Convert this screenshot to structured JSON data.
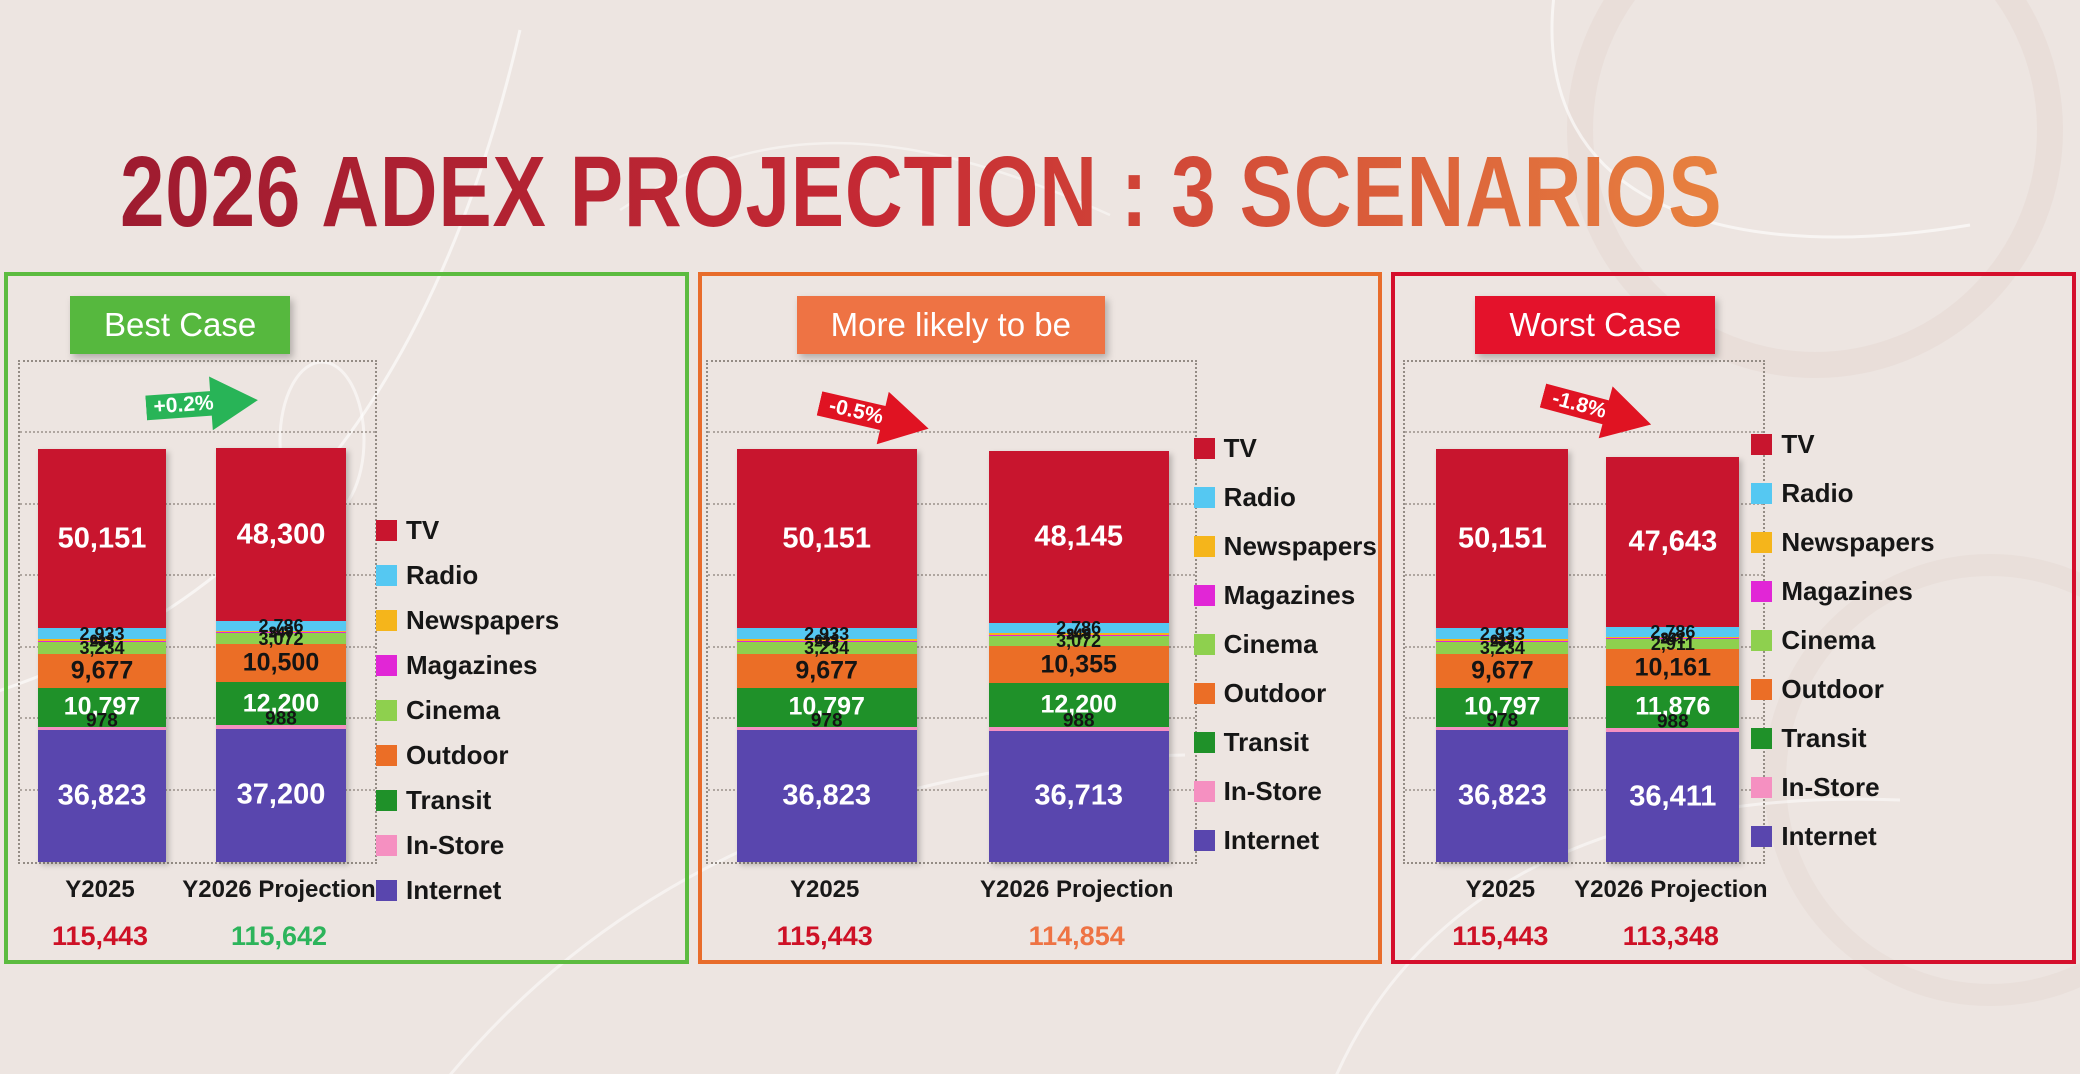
{
  "page": {
    "title": "2026 ADEX PROJECTION : 3 SCENARIOS",
    "background_color": "#EDE5E1",
    "title_gradient_colors": [
      "#9E1B30",
      "#E8823F"
    ]
  },
  "legend_items": [
    {
      "label": "TV",
      "color": "#C8152E"
    },
    {
      "label": "Radio",
      "color": "#55C8F2"
    },
    {
      "label": "Newspapers",
      "color": "#F5B51B"
    },
    {
      "label": "Magazines",
      "color": "#E126D6"
    },
    {
      "label": "Cinema",
      "color": "#8ED04E"
    },
    {
      "label": "Outdoor",
      "color": "#EB6E26"
    },
    {
      "label": "Transit",
      "color": "#1F9129"
    },
    {
      "label": "In-Store",
      "color": "#F590C1"
    },
    {
      "label": "Internet",
      "color": "#5946AE"
    }
  ],
  "stack_order_bottom_to_top": [
    "Internet",
    "In-Store",
    "Transit",
    "Outdoor",
    "Cinema",
    "Magazines",
    "Newspapers",
    "Radio",
    "TV"
  ],
  "chart_data": [
    {
      "type": "bar",
      "title": "Best Case",
      "banner_color": "#56B83E",
      "border_color": "#5CBB3F",
      "arrow": {
        "label": "+0.2%",
        "color": "#28B457"
      },
      "x_categories": [
        "Y2025",
        "Y2026 Projection"
      ],
      "ylim": [
        0,
        140000
      ],
      "gridline_interval": 20000,
      "series": [
        {
          "name": "TV",
          "values": [
            50151,
            48300
          ]
        },
        {
          "name": "Radio",
          "values": [
            2933,
            2786
          ]
        },
        {
          "name": "Newspapers",
          "values": [
            613,
            349
          ]
        },
        {
          "name": "Magazines",
          "values": [
            237,
            247
          ]
        },
        {
          "name": "Cinema",
          "values": [
            3234,
            3072
          ]
        },
        {
          "name": "Outdoor",
          "values": [
            9677,
            10500
          ]
        },
        {
          "name": "Transit",
          "values": [
            10797,
            12200
          ]
        },
        {
          "name": "In-Store",
          "values": [
            978,
            988
          ]
        },
        {
          "name": "Internet",
          "values": [
            36823,
            37200
          ]
        }
      ],
      "totals": [
        {
          "label": "115,443",
          "color": "#CE1126"
        },
        {
          "label": "115,642",
          "color": "#2DB45B"
        }
      ]
    },
    {
      "type": "bar",
      "title": "More likely to be",
      "banner_color": "#EE7344",
      "border_color": "#E86C2B",
      "arrow": {
        "label": "-0.5%",
        "color": "#E01322"
      },
      "x_categories": [
        "Y2025",
        "Y2026 Projection"
      ],
      "ylim": [
        0,
        140000
      ],
      "gridline_interval": 20000,
      "series": [
        {
          "name": "TV",
          "values": [
            50151,
            48145
          ]
        },
        {
          "name": "Radio",
          "values": [
            2933,
            2786
          ]
        },
        {
          "name": "Newspapers",
          "values": [
            613,
            349
          ]
        },
        {
          "name": "Magazines",
          "values": [
            237,
            246
          ]
        },
        {
          "name": "Cinema",
          "values": [
            3234,
            3072
          ]
        },
        {
          "name": "Outdoor",
          "values": [
            9677,
            10355
          ]
        },
        {
          "name": "Transit",
          "values": [
            10797,
            12200
          ]
        },
        {
          "name": "In-Store",
          "values": [
            978,
            988
          ]
        },
        {
          "name": "Internet",
          "values": [
            36823,
            36713
          ]
        }
      ],
      "totals": [
        {
          "label": "115,443",
          "color": "#CE1126"
        },
        {
          "label": "114,854",
          "color": "#EE7344"
        }
      ]
    },
    {
      "type": "bar",
      "title": "Worst Case",
      "banner_color": "#E4122B",
      "border_color": "#D50F2C",
      "arrow": {
        "label": "-1.8%",
        "color": "#E01322"
      },
      "x_categories": [
        "Y2025",
        "Y2026 Projection"
      ],
      "ylim": [
        0,
        140000
      ],
      "gridline_interval": 20000,
      "series": [
        {
          "name": "TV",
          "values": [
            50151,
            47643
          ]
        },
        {
          "name": "Radio",
          "values": [
            2933,
            2786
          ]
        },
        {
          "name": "Newspapers",
          "values": [
            613,
            331
          ]
        },
        {
          "name": "Magazines",
          "values": [
            237,
            241
          ]
        },
        {
          "name": "Cinema",
          "values": [
            3234,
            2911
          ]
        },
        {
          "name": "Outdoor",
          "values": [
            9677,
            10161
          ]
        },
        {
          "name": "Transit",
          "values": [
            10797,
            11876
          ]
        },
        {
          "name": "In-Store",
          "values": [
            978,
            988
          ]
        },
        {
          "name": "Internet",
          "values": [
            36823,
            36411
          ]
        }
      ],
      "totals": [
        {
          "label": "115,443",
          "color": "#CE1126"
        },
        {
          "label": "113,348",
          "color": "#CE1126"
        }
      ]
    }
  ]
}
